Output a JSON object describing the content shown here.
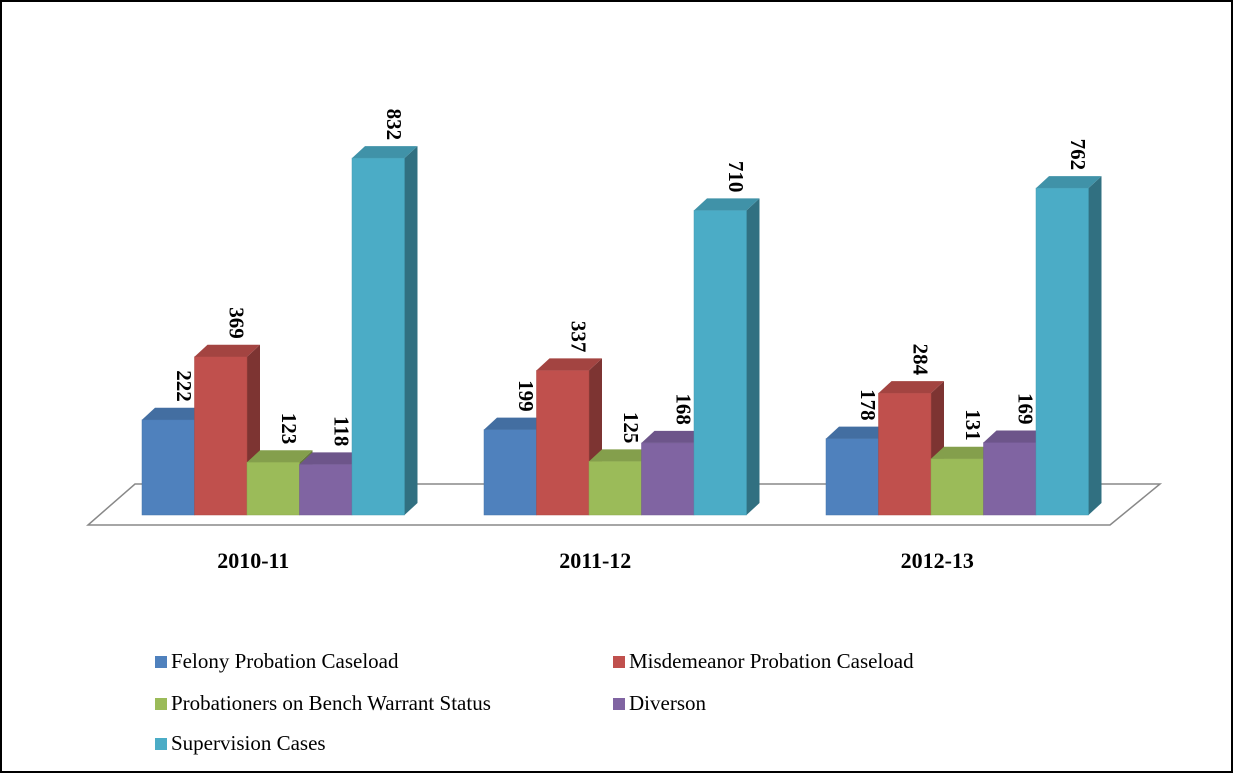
{
  "chart_data": {
    "type": "bar3d",
    "categories": [
      "2010-11",
      "2011-12",
      "2012-13"
    ],
    "series": [
      {
        "name": "Felony Probation Caseload",
        "color": "#4f81bd",
        "values": [
          222,
          199,
          178
        ]
      },
      {
        "name": "Misdemeanor Probation Caseload",
        "color": "#c0504d",
        "values": [
          369,
          337,
          284
        ]
      },
      {
        "name": "Probationers on Bench Warrant Status",
        "color": "#9bbb59",
        "values": [
          123,
          125,
          131
        ]
      },
      {
        "name": "Diverson",
        "color": "#8064a2",
        "values": [
          118,
          168,
          169
        ]
      },
      {
        "name": "Supervision Cases",
        "color": "#4bacc6",
        "values": [
          832,
          710,
          762
        ]
      }
    ],
    "data_labels": true
  }
}
